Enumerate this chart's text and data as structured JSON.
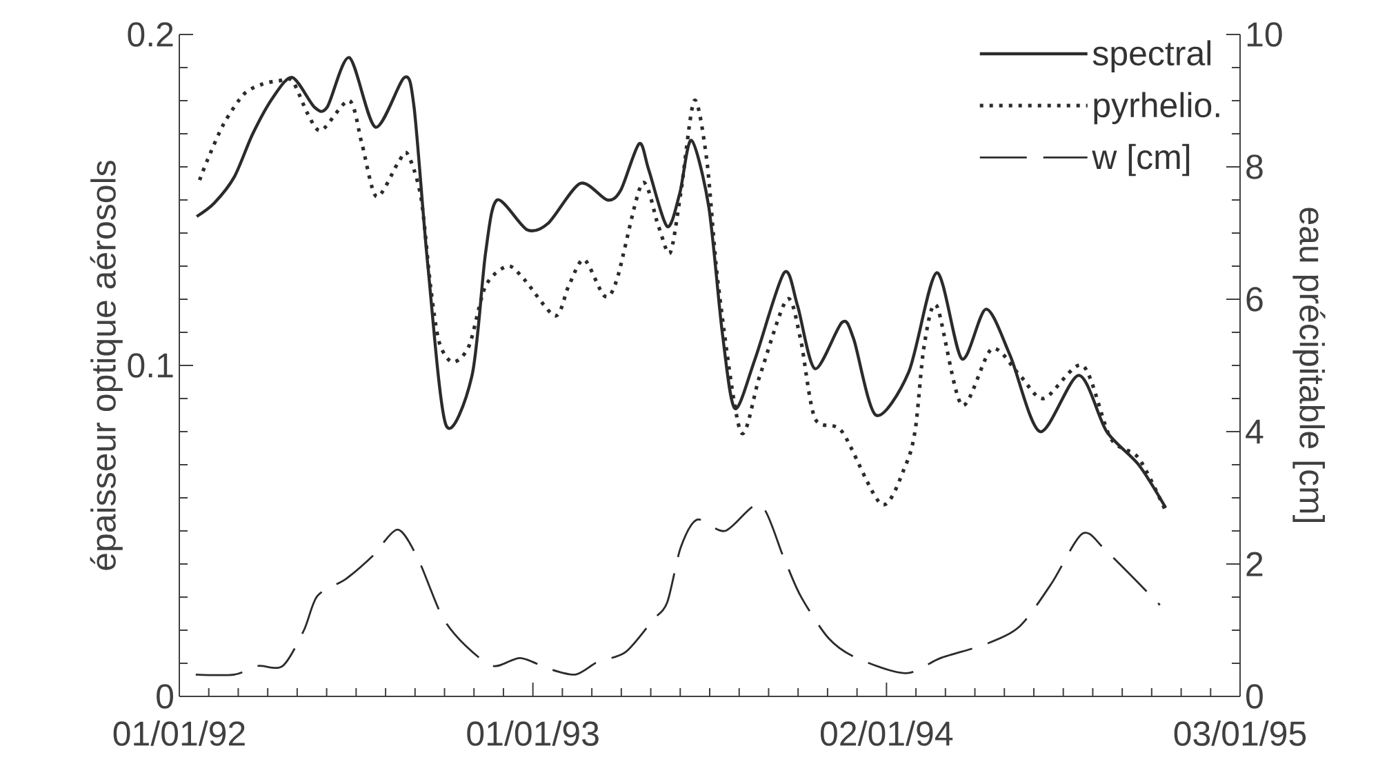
{
  "chart_data": {
    "type": "line",
    "ylabel": "épaisseur optique aérosols",
    "y2label": "eau précipitable [cm]",
    "xlim": [
      "1992-01-01",
      "1995-01-03"
    ],
    "xticks": [
      {
        "value": "1992-01-01",
        "label": "01/01/92"
      },
      {
        "value": "1993-01-01",
        "label": "01/01/93"
      },
      {
        "value": "1994-01-02",
        "label": "02/01/94"
      },
      {
        "value": "1995-01-03",
        "label": "03/01/95"
      }
    ],
    "ylim": [
      0,
      0.2
    ],
    "yticks": [
      0,
      0.1,
      0.2
    ],
    "y2lim": [
      0,
      10
    ],
    "y2ticks": [
      0,
      2,
      4,
      6,
      8,
      10
    ],
    "legend": "top right",
    "series": [
      {
        "name": "spectral",
        "color": "#2b2b2b",
        "line_style": "solid",
        "x": [
          "1992-01-19",
          "1992-02-06",
          "1992-02-27",
          "1992-03-17",
          "1992-04-07",
          "1992-04-27",
          "1992-05-20",
          "1992-06-02",
          "1992-06-25",
          "1992-07-22",
          "1992-08-21",
          "1992-08-31",
          "1992-09-14",
          "1992-10-03",
          "1992-10-30",
          "1992-11-13",
          "1992-11-25",
          "1992-12-26",
          "1993-01-17",
          "1993-02-19",
          "1993-03-19",
          "1993-04-02",
          "1993-04-21",
          "1993-05-01",
          "1993-05-20",
          "1993-06-02",
          "1993-06-14",
          "1993-07-02",
          "1993-07-16",
          "1993-07-29",
          "1993-08-19",
          "1993-09-18",
          "1993-10-02",
          "1993-10-20",
          "1993-11-17",
          "1993-11-29",
          "1993-12-22",
          "1994-01-25",
          "1994-02-23",
          "1994-03-21",
          "1994-04-15",
          "1994-05-10",
          "1994-06-10",
          "1994-07-20",
          "1994-08-18",
          "1994-09-20",
          "1994-10-18"
        ],
        "values": [
          0.145,
          0.149,
          0.157,
          0.17,
          0.181,
          0.187,
          0.178,
          0.178,
          0.193,
          0.172,
          0.187,
          0.178,
          0.131,
          0.082,
          0.097,
          0.134,
          0.15,
          0.141,
          0.143,
          0.155,
          0.15,
          0.153,
          0.167,
          0.159,
          0.142,
          0.152,
          0.168,
          0.148,
          0.11,
          0.087,
          0.102,
          0.128,
          0.118,
          0.099,
          0.113,
          0.108,
          0.085,
          0.098,
          0.128,
          0.102,
          0.117,
          0.103,
          0.08,
          0.097,
          0.08,
          0.07,
          0.057
        ]
      },
      {
        "name": "pyrhelio.",
        "color": "#2b2b2b",
        "line_style": "dotted",
        "x": [
          "1992-01-22",
          "1992-01-30",
          "1992-02-16",
          "1992-03-08",
          "1992-03-27",
          "1992-04-13",
          "1992-04-27",
          "1992-05-13",
          "1992-05-27",
          "1992-06-25",
          "1992-07-08",
          "1992-07-23",
          "1992-08-14",
          "1992-08-24",
          "1992-09-07",
          "1992-09-17",
          "1992-09-26",
          "1992-10-10",
          "1992-10-27",
          "1992-11-13",
          "1992-12-06",
          "1992-12-23",
          "1993-01-24",
          "1993-02-07",
          "1993-02-23",
          "1993-03-16",
          "1993-03-29",
          "1993-04-24",
          "1993-05-11",
          "1993-05-23",
          "1993-06-03",
          "1993-06-17",
          "1993-06-30",
          "1993-07-12",
          "1993-08-04",
          "1993-08-24",
          "1993-09-21",
          "1993-10-05",
          "1993-10-20",
          "1993-11-17",
          "1993-12-28",
          "1994-01-22",
          "1994-02-01",
          "1994-02-10",
          "1994-02-23",
          "1994-03-21",
          "1994-04-21",
          "1994-05-20",
          "1994-06-14",
          "1994-07-24",
          "1994-08-22",
          "1994-09-20",
          "1994-10-18"
        ],
        "values": [
          0.156,
          0.162,
          0.173,
          0.182,
          0.185,
          0.186,
          0.186,
          0.176,
          0.171,
          0.18,
          0.167,
          0.151,
          0.161,
          0.164,
          0.151,
          0.124,
          0.107,
          0.101,
          0.106,
          0.124,
          0.13,
          0.126,
          0.115,
          0.124,
          0.132,
          0.121,
          0.126,
          0.155,
          0.142,
          0.134,
          0.152,
          0.18,
          0.162,
          0.124,
          0.08,
          0.097,
          0.12,
          0.108,
          0.084,
          0.08,
          0.058,
          0.07,
          0.081,
          0.106,
          0.118,
          0.088,
          0.105,
          0.097,
          0.09,
          0.1,
          0.078,
          0.072,
          0.056
        ]
      },
      {
        "name": "w [cm]",
        "color": "#2b2b2b",
        "line_style": "dashed",
        "axis": "y2",
        "x": [
          "1992-01-18",
          "1992-02-27",
          "1992-03-22",
          "1992-04-17",
          "1992-05-09",
          "1992-05-23",
          "1992-06-21",
          "1992-07-19",
          "1992-08-14",
          "1992-09-04",
          "1992-09-29",
          "1992-10-23",
          "1992-11-21",
          "1992-12-19",
          "1993-01-17",
          "1993-02-14",
          "1993-03-09",
          "1993-04-07",
          "1993-05-05",
          "1993-05-20",
          "1993-06-03",
          "1993-06-20",
          "1993-07-19",
          "1993-08-24",
          "1993-09-17",
          "1993-10-05",
          "1993-11-03",
          "1993-12-02",
          "1994-01-22",
          "1994-02-27",
          "1994-04-15",
          "1994-05-20",
          "1994-06-22",
          "1994-07-24",
          "1994-08-18",
          "1994-10-12"
        ],
        "values": [
          0.33,
          0.33,
          0.46,
          0.46,
          1.0,
          1.52,
          1.77,
          2.12,
          2.52,
          2.08,
          1.21,
          0.77,
          0.46,
          0.58,
          0.42,
          0.33,
          0.52,
          0.67,
          1.15,
          1.42,
          2.25,
          2.67,
          2.5,
          2.9,
          2.12,
          1.52,
          0.88,
          0.58,
          0.35,
          0.58,
          0.79,
          1.06,
          1.71,
          2.46,
          2.19,
          1.38
        ]
      }
    ]
  }
}
